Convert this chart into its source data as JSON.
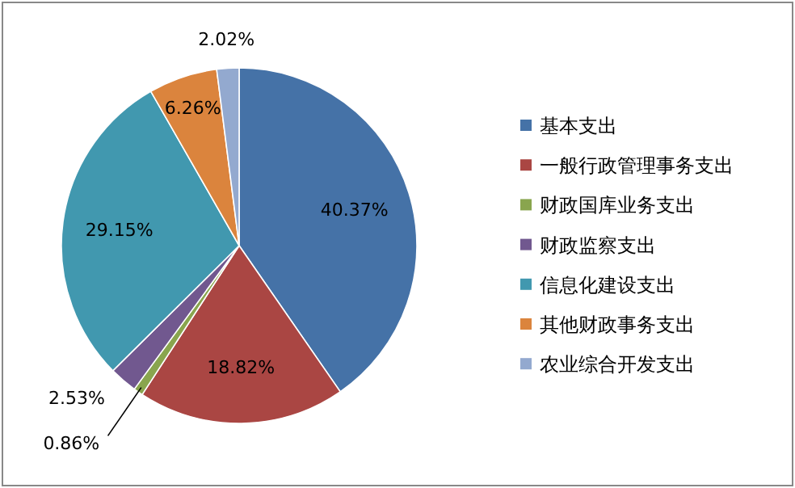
{
  "chart_data": {
    "type": "pie",
    "categories": [
      "基本支出",
      "一般行政管理事务支出",
      "财政国库业务支出",
      "财政监察支出",
      "信息化建设支出",
      "其他财政事务支出",
      "农业综合开发支出"
    ],
    "values": [
      40.37,
      18.82,
      0.86,
      2.53,
      29.15,
      6.26,
      2.02
    ],
    "value_labels": [
      "40.37%",
      "18.82%",
      "0.86%",
      "2.53%",
      "29.15%",
      "6.26%",
      "2.02%"
    ],
    "colors": [
      "#4572a7",
      "#aa4643",
      "#89a54e",
      "#71588f",
      "#4198af",
      "#db843d",
      "#93a9cf"
    ],
    "legend": "right"
  }
}
